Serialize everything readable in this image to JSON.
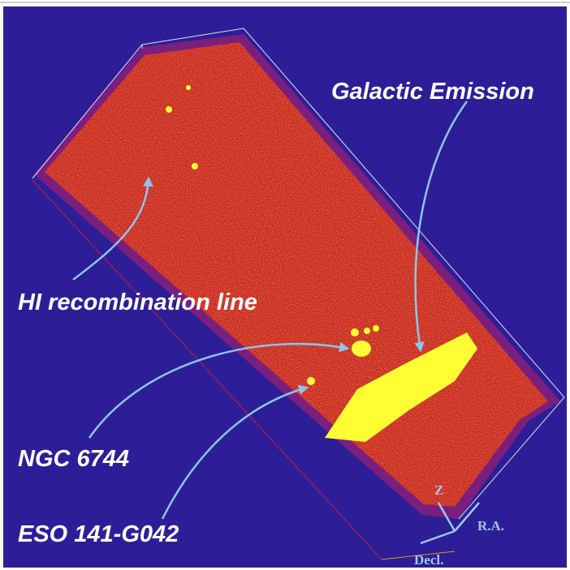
{
  "labels": {
    "galactic": "Galactic Emission",
    "hi": "HI recombination line",
    "ngc": "NGC 6744",
    "eso": "ESO 141-G042"
  },
  "axes": {
    "z": "Z",
    "ra": "R.A.",
    "decl": "Decl."
  }
}
